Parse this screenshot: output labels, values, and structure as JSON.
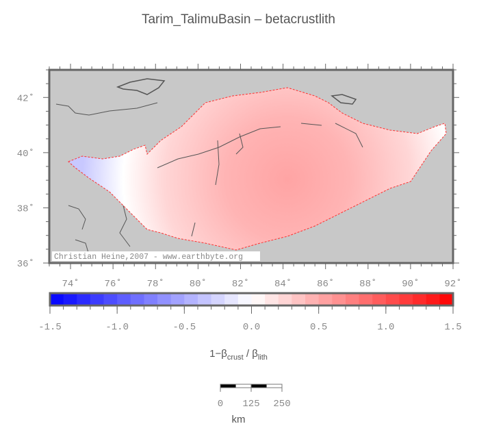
{
  "title": "Tarim_TalimuBasin – betacrustlith",
  "map": {
    "lon_ticks": [
      "74˚",
      "76˚",
      "78˚",
      "80˚",
      "82˚",
      "84˚",
      "86˚",
      "88˚",
      "90˚",
      "92˚"
    ],
    "lat_ticks": [
      "36˚",
      "38˚",
      "40˚",
      "42˚"
    ],
    "lon_range": [
      73,
      92
    ],
    "lat_range": [
      36,
      43
    ],
    "background_color": "#c8c8c8",
    "credit": "Christian Heine,2007 - www.earthbyte.org"
  },
  "colorbar": {
    "range": [
      -1.5,
      1.5
    ],
    "step": 0.1,
    "tick_labels": [
      "-1.5",
      "-1.0",
      "-0.5",
      "0.0",
      "0.5",
      "1.0",
      "1.5"
    ],
    "low_color": "#0000ff",
    "mid_color": "#ffffff",
    "high_color": "#ff0000",
    "label_main": "1−β",
    "label_sub1": "crust",
    "label_mid": " / β",
    "label_sub2": "lith"
  },
  "scalebar": {
    "labels": [
      "0",
      "125",
      "250"
    ],
    "unit": "km"
  }
}
